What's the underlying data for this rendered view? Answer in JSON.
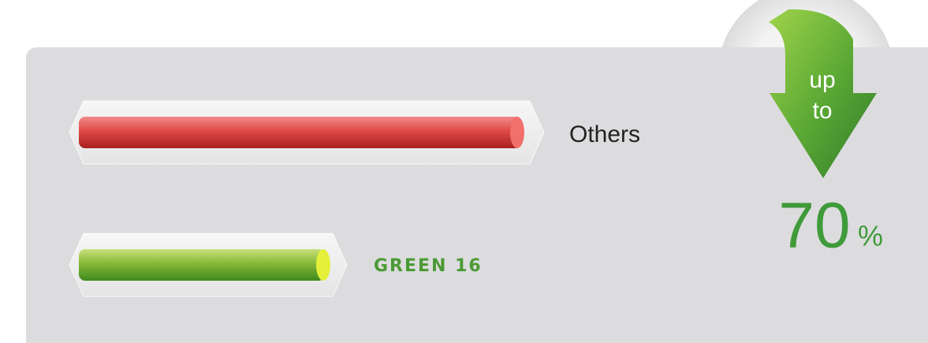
{
  "bars": [
    {
      "label": "Others"
    },
    {
      "label": "GREEN 16"
    }
  ],
  "badge": {
    "line1": "up",
    "line2": "to",
    "value": "70",
    "unit": "%"
  }
}
